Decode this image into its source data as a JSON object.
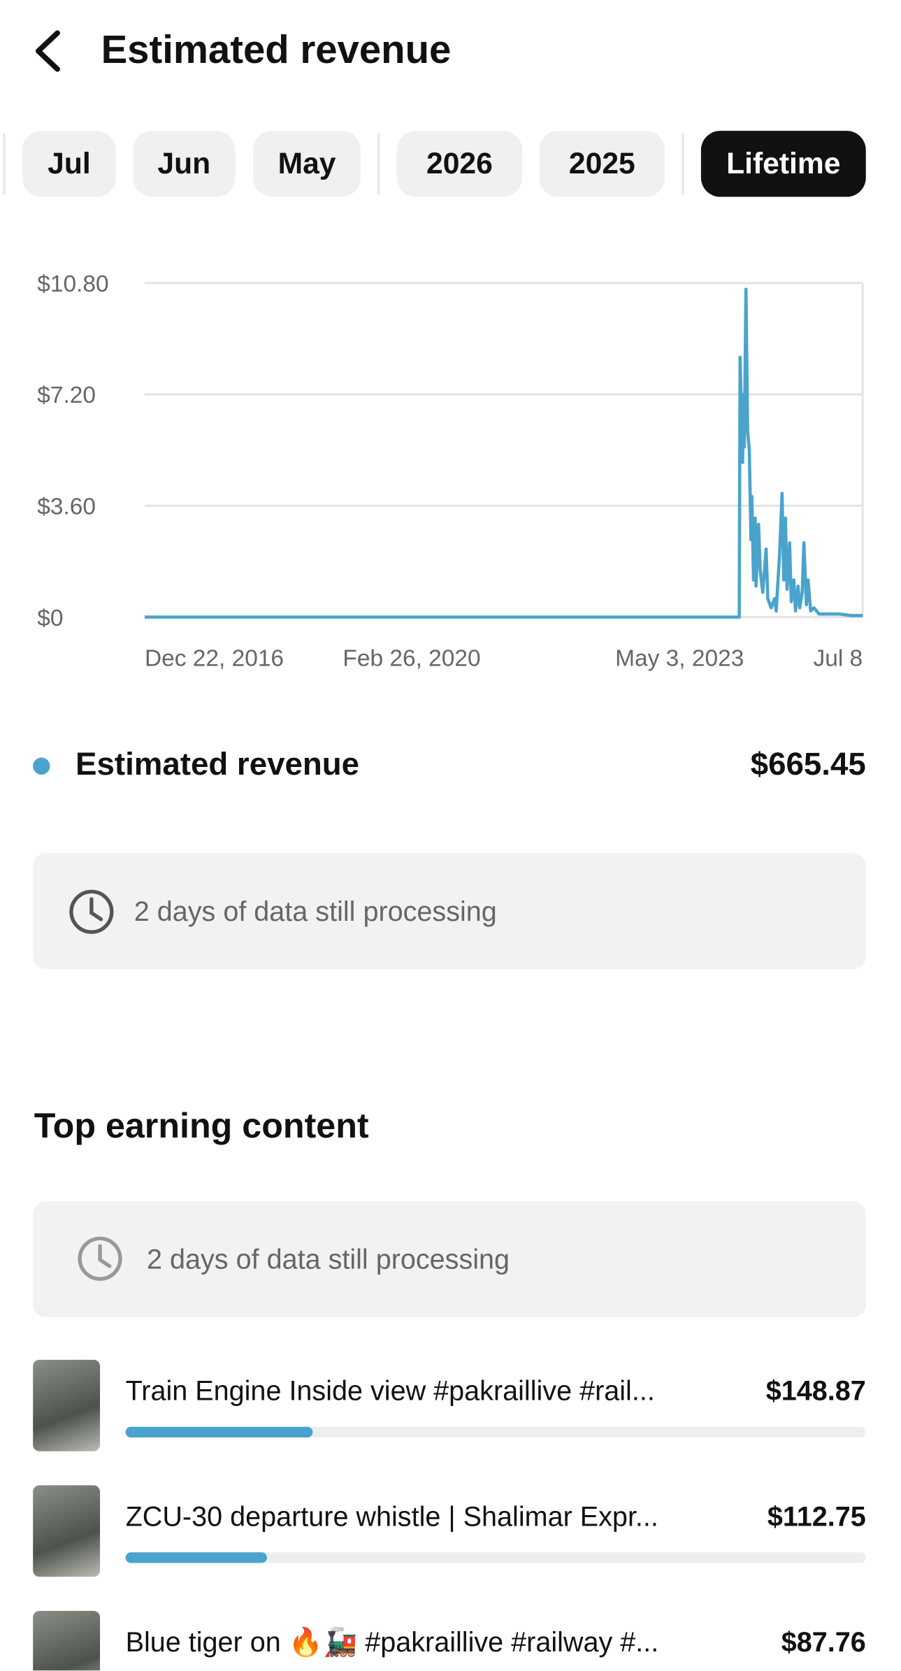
{
  "header": {
    "title": "Estimated revenue"
  },
  "tabs": [
    "Jul",
    "Jun",
    "May",
    "2026",
    "2025",
    "Lifetime"
  ],
  "selected_tab": 5,
  "chart_data": {
    "type": "line",
    "x": [
      2016.97,
      2024.05,
      2024.06,
      2024.09,
      2024.1,
      2024.11,
      2024.13,
      2024.15,
      2024.17,
      2024.19,
      2024.2,
      2024.22,
      2024.24,
      2024.25,
      2024.28,
      2024.3,
      2024.33,
      2024.37,
      2024.39,
      2024.43,
      2024.47,
      2024.49,
      2024.53,
      2024.56,
      2024.58,
      2024.6,
      2024.62,
      2024.65,
      2024.67,
      2024.7,
      2024.72,
      2024.75,
      2024.77,
      2024.8,
      2024.82,
      2024.85,
      2024.87,
      2024.9,
      2024.94,
      2025.0,
      2025.13,
      2025.25,
      2025.38,
      2025.52
    ],
    "series": [
      {
        "name": "Estimated revenue",
        "color": "#4aa3cc",
        "values": [
          0,
          0,
          8.4,
          5.0,
          7.2,
          5.5,
          10.6,
          6.0,
          5.4,
          2.5,
          3.9,
          1.2,
          3.2,
          1.0,
          3.0,
          1.5,
          0.8,
          2.2,
          0.6,
          0.3,
          0.6,
          0.2,
          2.0,
          4.0,
          1.2,
          3.2,
          0.9,
          2.4,
          0.5,
          1.2,
          0.2,
          1.0,
          0.3,
          0.8,
          2.4,
          0.4,
          1.2,
          0.2,
          0.3,
          0.1,
          0.1,
          0.1,
          0.05,
          0.05
        ]
      }
    ],
    "xlim": [
      2016.97,
      2025.52
    ],
    "xticks": [
      {
        "value": 2016.97,
        "label": "Dec 22, 2016"
      },
      {
        "value": 2020.15,
        "label": "Feb 26, 2020"
      },
      {
        "value": 2023.34,
        "label": "May 3, 2023"
      },
      {
        "value": 2025.52,
        "label": "Jul 8"
      }
    ],
    "ylim": [
      0,
      10.8
    ],
    "yticks": [
      {
        "value": 0,
        "label": "$0"
      },
      {
        "value": 3.6,
        "label": "$3.60"
      },
      {
        "value": 7.2,
        "label": "$7.20"
      },
      {
        "value": 10.8,
        "label": "$10.80"
      }
    ],
    "grid": true
  },
  "total": "$665.45",
  "notice": "2 days of data still processing",
  "top_content": {
    "title": "Top earning content",
    "notice": "2 days of data still processing",
    "xlim": [
      0,
      590
    ],
    "color": "#4aa3cc",
    "items": [
      {
        "title": "Train Engine Inside view #pakraillive #rail...",
        "value": 148.87,
        "value_label": "$148.87"
      },
      {
        "title": "ZCU-30 departure whistle | Shalimar Expr...",
        "value": 112.75,
        "value_label": "$112.75"
      },
      {
        "title": "Blue tiger on 🔥🚂 #pakraillive #railway #...",
        "value": 87.76,
        "value_label": "$87.76"
      }
    ]
  }
}
